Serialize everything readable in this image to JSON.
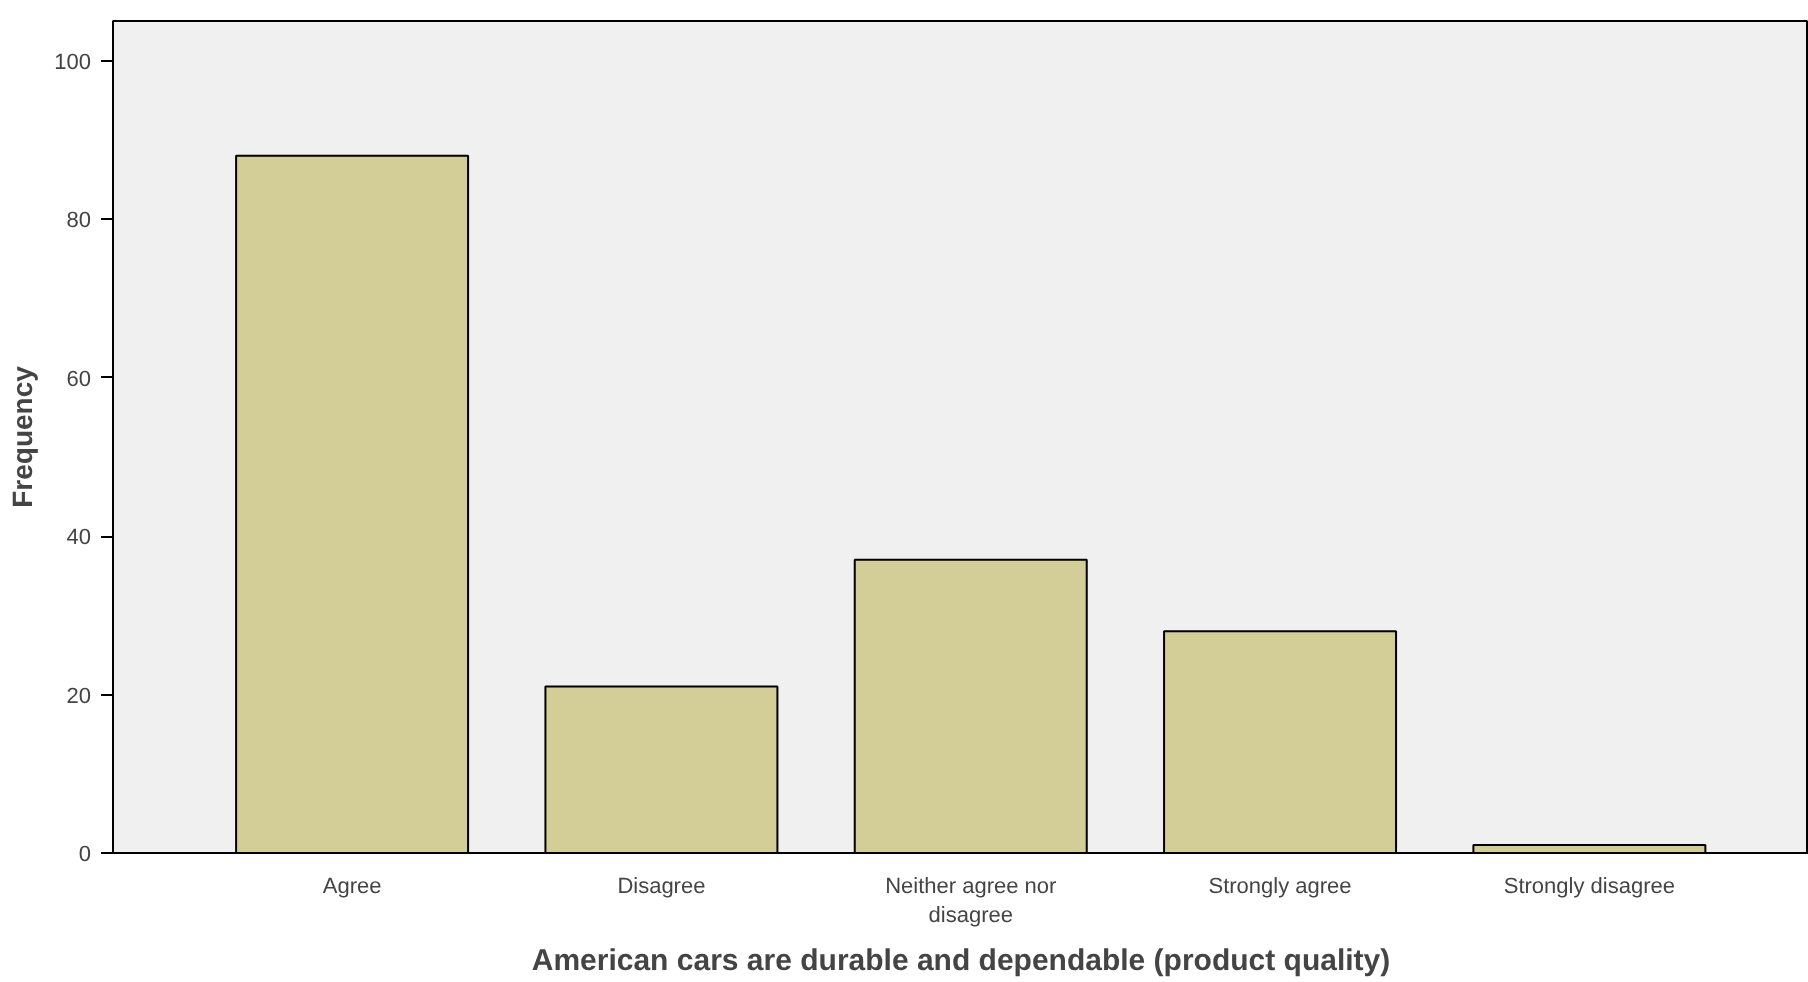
{
  "chart_data": {
    "type": "bar",
    "xlabel": "American cars are durable and dependable (product quality)",
    "ylabel": "Frequency",
    "categories": [
      "Agree",
      "Disagree",
      "Neither agree nor disagree",
      "Strongly agree",
      "Strongly disagree"
    ],
    "values": [
      88,
      21,
      37,
      28,
      1
    ],
    "color": "#d3cd98",
    "ylim": [
      0,
      105
    ],
    "yticks": [
      0,
      20,
      40,
      60,
      80,
      100
    ],
    "grid": false
  }
}
